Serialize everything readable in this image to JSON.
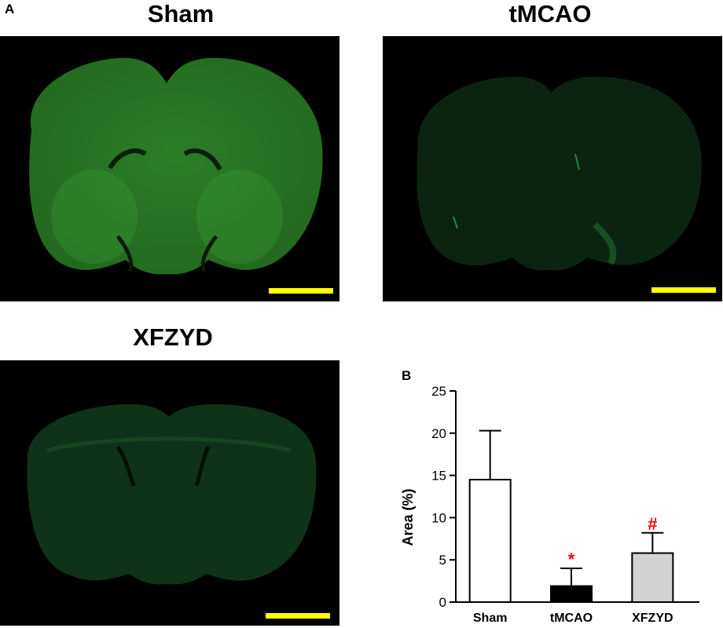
{
  "panel_a": {
    "letter": "A",
    "images": [
      {
        "title": "Sham",
        "stain_color": "#2f8a2a",
        "glow": "#4cc04a",
        "brightness": 0.95
      },
      {
        "title": "tMCAO",
        "stain_color": "#0c2a14",
        "glow": "#1f5a2a",
        "brightness": 0.35
      },
      {
        "title": "XFZYD",
        "stain_color": "#10391a",
        "glow": "#2a7a2e",
        "brightness": 0.45
      }
    ],
    "scale_bar_color": "#ffff00"
  },
  "chart_data": {
    "type": "bar",
    "panel_letter": "B",
    "title": "",
    "xlabel": "",
    "ylabel": "Area (%)",
    "ylim": [
      0,
      25
    ],
    "yticks": [
      0,
      5,
      10,
      15,
      20,
      25
    ],
    "categories": [
      "Sham",
      "tMCAO",
      "XFZYD"
    ],
    "values": [
      14.5,
      1.9,
      5.8
    ],
    "errors": [
      5.8,
      2.1,
      2.4
    ],
    "bar_colors": [
      "#ffffff",
      "#000000",
      "#d3d3d3"
    ],
    "annotations": [
      "",
      "*",
      "#"
    ],
    "annotation_color": "#ff0000",
    "grid": false
  }
}
